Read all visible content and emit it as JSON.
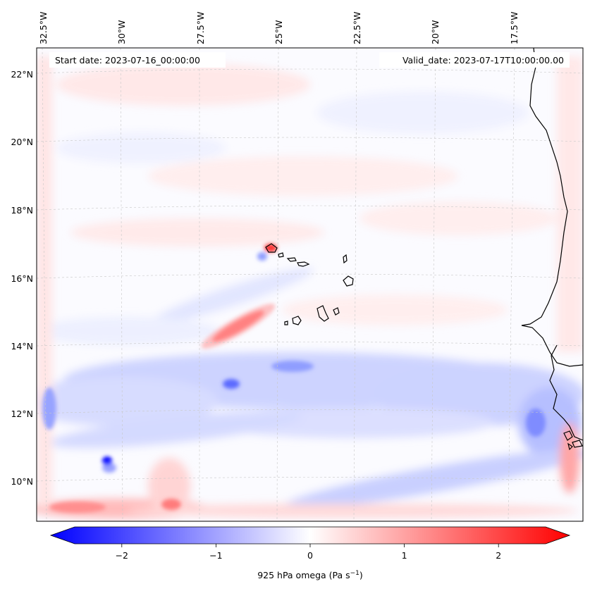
{
  "map": {
    "start_date": "Start date: 2023-07-16_00:00:00",
    "valid_date": "Valid_date: 2023-07-17T10:00:00.00",
    "lon_labels": [
      "32.5°W",
      "30°W",
      "27.5°W",
      "25°W",
      "22.5°W",
      "20°W",
      "17.5°W"
    ],
    "lat_labels": [
      "22°N",
      "20°N",
      "18°N",
      "16°N",
      "14°N",
      "12°N",
      "10°N"
    ]
  },
  "colorbar": {
    "label": "925 hPa omega (Pa s",
    "label_sup": "−1",
    "label_end": ")",
    "ticks": [
      "−2",
      "−1",
      "0",
      "1",
      "2"
    ],
    "tick_values": [
      -2,
      -1,
      0,
      1,
      2
    ],
    "range": [
      -2.5,
      2.5
    ],
    "colors": {
      "negative": "#0000ff",
      "zero": "#ffffff",
      "positive": "#ff0000"
    }
  },
  "chart_data": {
    "type": "heatmap",
    "variable": "925 hPa omega",
    "units": "Pa s-1",
    "lon_range": [
      -33.0,
      -16.0
    ],
    "lat_range": [
      9.0,
      22.8
    ],
    "color_range": [
      -2.5,
      2.5
    ],
    "gridlines": true
  }
}
